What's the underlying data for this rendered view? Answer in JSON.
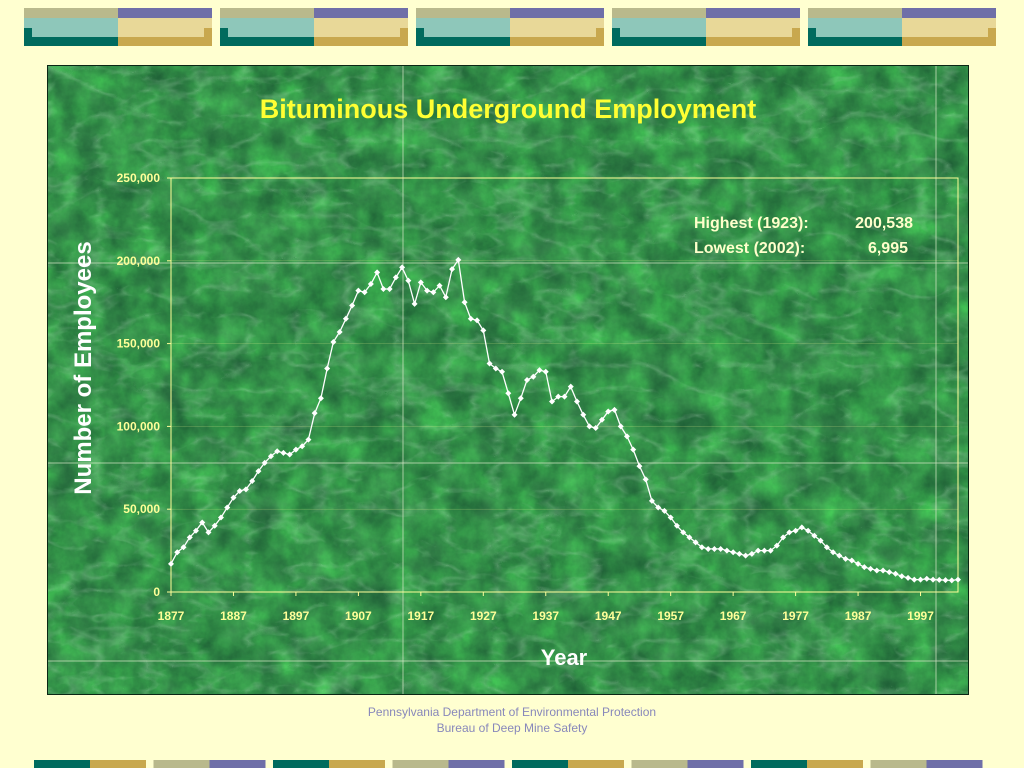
{
  "slide": {
    "footer_line1": "Pennsylvania Department of Environmental Protection",
    "footer_line2": "Bureau of Deep Mine Safety"
  },
  "colors": {
    "background": "#ffffd0",
    "panel": "#1c5a34",
    "deco_teal": "#006b5e",
    "deco_tan": "#c8a84e",
    "deco_purple": "#6f6fa8",
    "deco_khaki": "#b9b98c",
    "deco_mint": "#8ec7ba",
    "deco_lightgold": "#e8d898",
    "title": "#ffff33",
    "line": "#ffffff"
  },
  "chart_data": {
    "type": "line",
    "title": "Bituminous Underground Employment",
    "xlabel": "Year",
    "ylabel": "Number of Employees",
    "ylim": [
      0,
      250000
    ],
    "xlim": [
      1877,
      2003
    ],
    "grid": true,
    "x_tick_labels": [
      "1877",
      "1887",
      "1897",
      "1907",
      "1917",
      "1927",
      "1937",
      "1947",
      "1957",
      "1967",
      "1977",
      "1987",
      "1997"
    ],
    "y_tick_labels": [
      "0",
      "50,000",
      "100,000",
      "150,000",
      "200,000",
      "250,000"
    ],
    "annotations": [
      {
        "label": "Highest (1923):",
        "value": "200,538"
      },
      {
        "label": "Lowest (2002):",
        "value": "6,995"
      }
    ],
    "series": [
      {
        "x": [
          1877,
          1878,
          1879,
          1880,
          1881,
          1882,
          1883,
          1884,
          1885,
          1886,
          1887,
          1888,
          1889,
          1890,
          1891,
          1892,
          1893,
          1894,
          1895,
          1896,
          1897,
          1898,
          1899,
          1900,
          1901,
          1902,
          1903,
          1904,
          1905,
          1906,
          1907,
          1908,
          1909,
          1910,
          1911,
          1912,
          1913,
          1914,
          1915,
          1916,
          1917,
          1918,
          1919,
          1920,
          1921,
          1922,
          1923,
          1924,
          1925,
          1926,
          1927,
          1928,
          1929,
          1930,
          1931,
          1932,
          1933,
          1934,
          1935,
          1936,
          1937,
          1938,
          1939,
          1940,
          1941,
          1942,
          1943,
          1944,
          1945,
          1946,
          1947,
          1948,
          1949,
          1950,
          1951,
          1952,
          1953,
          1954,
          1955,
          1956,
          1957,
          1958,
          1959,
          1960,
          1961,
          1962,
          1963,
          1964,
          1965,
          1966,
          1967,
          1968,
          1969,
          1970,
          1971,
          1972,
          1973,
          1974,
          1975,
          1976,
          1977,
          1978,
          1979,
          1980,
          1981,
          1982,
          1983,
          1984,
          1985,
          1986,
          1987,
          1988,
          1989,
          1990,
          1991,
          1992,
          1993,
          1994,
          1995,
          1996,
          1997,
          1998,
          1999,
          2000,
          2001,
          2002,
          2003
        ],
        "values": [
          17000,
          24000,
          27000,
          33000,
          37000,
          42000,
          36000,
          40000,
          45000,
          51000,
          57000,
          61000,
          62000,
          67000,
          73000,
          78000,
          82000,
          85000,
          84000,
          83000,
          86000,
          88000,
          92000,
          108000,
          117000,
          135000,
          151000,
          157000,
          165000,
          173000,
          182000,
          181000,
          186000,
          193000,
          183000,
          183000,
          190000,
          196000,
          188000,
          174000,
          187000,
          182000,
          181000,
          185000,
          178000,
          195000,
          200538,
          175000,
          165000,
          164000,
          158000,
          138000,
          135000,
          133000,
          120000,
          107000,
          117000,
          128000,
          130000,
          134000,
          133000,
          115000,
          118000,
          118000,
          124000,
          115000,
          107000,
          100000,
          99000,
          104000,
          109000,
          110000,
          100000,
          94000,
          86000,
          76000,
          68000,
          55000,
          51000,
          49000,
          45000,
          40000,
          36000,
          33000,
          30000,
          27000,
          26000,
          26000,
          26000,
          25000,
          24000,
          23000,
          22000,
          23000,
          25000,
          25000,
          25000,
          28000,
          33000,
          36000,
          37000,
          39000,
          37000,
          34000,
          31000,
          27000,
          24000,
          22000,
          20000,
          19000,
          17000,
          15000,
          14000,
          13000,
          13000,
          12000,
          11000,
          9500,
          8500,
          7500,
          7500,
          8000,
          7500,
          7300,
          7200,
          6995,
          7500
        ]
      }
    ]
  }
}
